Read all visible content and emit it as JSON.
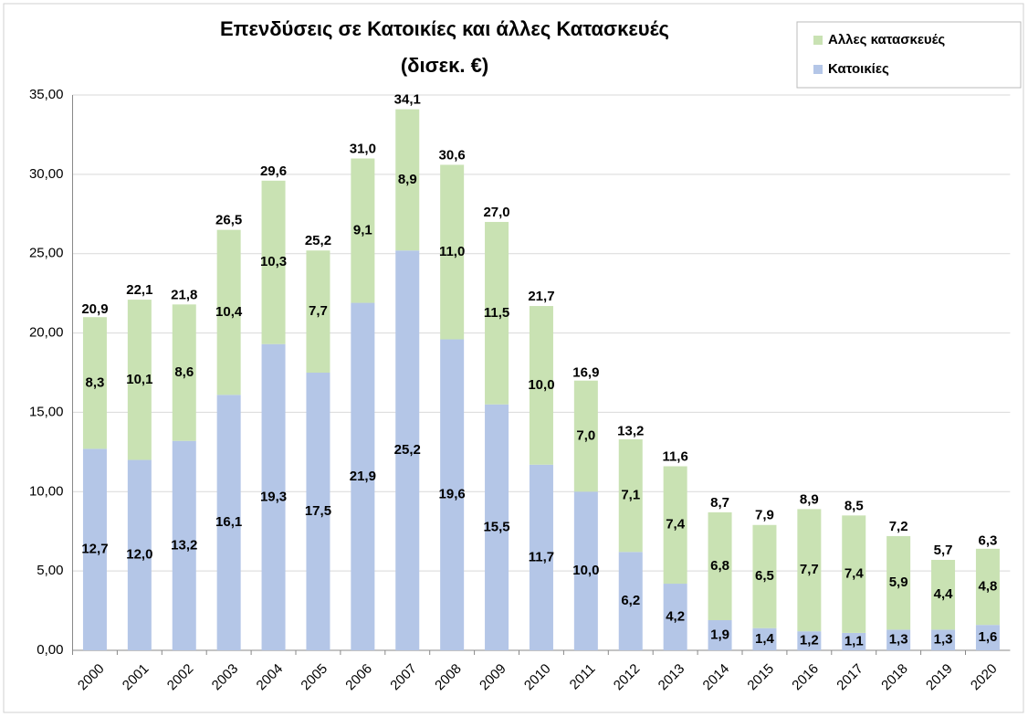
{
  "chart_data": {
    "type": "stacked_bar",
    "title": "Επενδύσεις σε Κατοικίες και άλλες Κατασκευές",
    "subtitle": "(δισεκ. €)",
    "categories": [
      "2000",
      "2001",
      "2002",
      "2003",
      "2004",
      "2005",
      "2006",
      "2007",
      "2008",
      "2009",
      "2010",
      "2011",
      "2012",
      "2013",
      "2014",
      "2015",
      "2016",
      "2017",
      "2018",
      "2019",
      "2020"
    ],
    "series": [
      {
        "name": "Κατοικίες",
        "color": "#b4c6e7",
        "values": [
          12.7,
          12.0,
          13.2,
          16.1,
          19.3,
          17.5,
          21.9,
          25.2,
          19.6,
          15.5,
          11.7,
          10.0,
          6.2,
          4.2,
          1.9,
          1.4,
          1.2,
          1.1,
          1.3,
          1.3,
          1.6
        ],
        "value_labels": [
          "12,7",
          "12,0",
          "13,2",
          "16,1",
          "19,3",
          "17,5",
          "21,9",
          "25,2",
          "19,6",
          "15,5",
          "11,7",
          "10,0",
          "6,2",
          "4,2",
          "1,9",
          "1,4",
          "1,2",
          "1,1",
          "1,3",
          "1,3",
          "1,6"
        ]
      },
      {
        "name": "Αλλες κατασκευές",
        "color": "#c9e2b3",
        "values": [
          8.3,
          10.1,
          8.6,
          10.4,
          10.3,
          7.7,
          9.1,
          8.9,
          11.0,
          11.5,
          10.0,
          7.0,
          7.1,
          7.4,
          6.8,
          6.5,
          7.7,
          7.4,
          5.9,
          4.4,
          4.8
        ],
        "value_labels": [
          "8,3",
          "10,1",
          "8,6",
          "10,4",
          "10,3",
          "7,7",
          "9,1",
          "8,9",
          "11,0",
          "11,5",
          "10,0",
          "7,0",
          "7,1",
          "7,4",
          "6,8",
          "6,5",
          "7,7",
          "7,4",
          "5,9",
          "4,4",
          "4,8"
        ]
      }
    ],
    "totals": [
      20.9,
      22.1,
      21.8,
      26.5,
      29.6,
      25.2,
      31.0,
      34.1,
      30.6,
      27.0,
      21.7,
      16.9,
      13.2,
      11.6,
      8.7,
      7.9,
      8.9,
      8.5,
      7.2,
      5.7,
      6.3
    ],
    "total_labels": [
      "20,9",
      "22,1",
      "21,8",
      "26,5",
      "29,6",
      "25,2",
      "31,0",
      "34,1",
      "30,6",
      "27,0",
      "21,7",
      "16,9",
      "13,2",
      "11,6",
      "8,7",
      "7,9",
      "8,9",
      "8,5",
      "7,2",
      "5,7",
      "6,3"
    ],
    "ylim": [
      0,
      35
    ],
    "yticks": [
      {
        "value": 0,
        "label": "0,00"
      },
      {
        "value": 5,
        "label": "5,00"
      },
      {
        "value": 10,
        "label": "10,00"
      },
      {
        "value": 15,
        "label": "15,00"
      },
      {
        "value": 20,
        "label": "20,00"
      },
      {
        "value": 25,
        "label": "25,00"
      },
      {
        "value": 30,
        "label": "30,00"
      },
      {
        "value": 35,
        "label": "35,00"
      }
    ],
    "grid": true,
    "legend": "upper right"
  }
}
